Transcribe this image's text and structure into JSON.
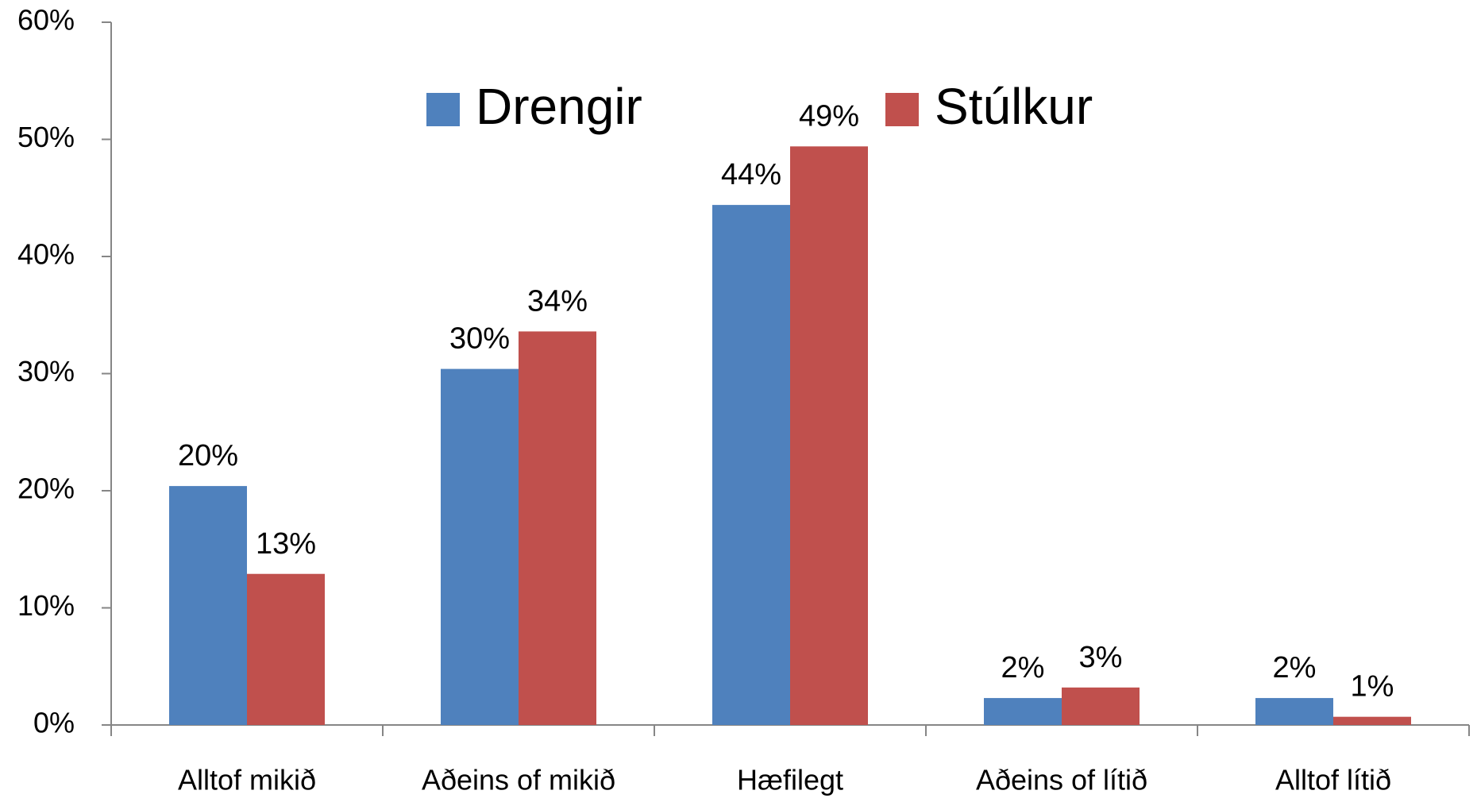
{
  "chart_data": {
    "type": "bar",
    "categories": [
      "Alltof mikið",
      "Aðeins of mikið",
      "Hæfilegt",
      "Aðeins of lítið",
      "Alltof lítið"
    ],
    "series": [
      {
        "name": "Drengir",
        "color": "#4f81bd",
        "values": [
          20.4,
          30.4,
          44.4,
          2.3,
          2.3
        ],
        "value_labels": [
          "20%",
          "30%",
          "44%",
          "2%",
          "2%"
        ]
      },
      {
        "name": "Stúlkur",
        "color": "#c0504d",
        "values": [
          12.9,
          33.6,
          49.4,
          3.2,
          0.7
        ],
        "value_labels": [
          "13%",
          "34%",
          "49%",
          "3%",
          "1%"
        ]
      }
    ],
    "ylim": [
      0,
      60
    ],
    "yticks": [
      {
        "value": 0,
        "label": "0%"
      },
      {
        "value": 10,
        "label": "10%"
      },
      {
        "value": 20,
        "label": "20%"
      },
      {
        "value": 30,
        "label": "30%"
      },
      {
        "value": 40,
        "label": "40%"
      },
      {
        "value": 50,
        "label": "50%"
      },
      {
        "value": 60,
        "label": "60%"
      }
    ],
    "legend": "top"
  }
}
